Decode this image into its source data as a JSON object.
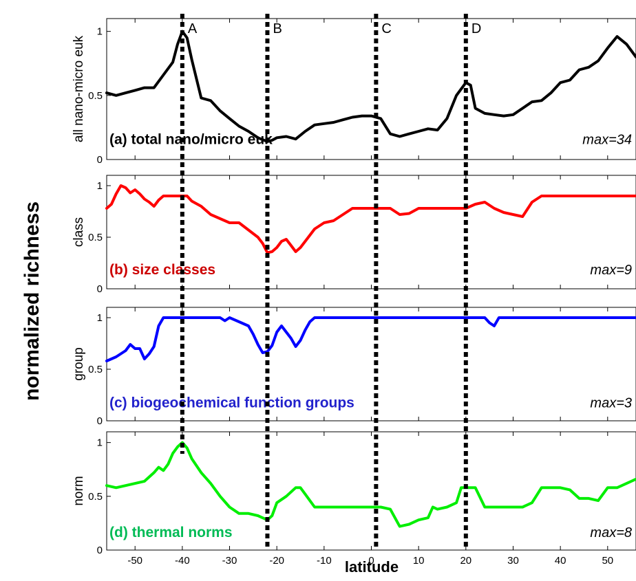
{
  "chart_data": {
    "type": "line",
    "ylabel": "normalized richness",
    "xlabel": "latitude",
    "xlim": [
      -56,
      56
    ],
    "x_ticks": [
      -50,
      -40,
      -30,
      -20,
      -10,
      0,
      10,
      20,
      30,
      40,
      50
    ],
    "markers": [
      {
        "label": "A",
        "x": -40
      },
      {
        "label": "B",
        "x": -22
      },
      {
        "label": "C",
        "x": 1
      },
      {
        "label": "D",
        "x": 20
      }
    ],
    "panels": [
      {
        "ylabel": "all nano-micro euk",
        "label": "(a) total nano/micro euk",
        "max_label": "max=34",
        "color": "#000000",
        "label_color": "#000000",
        "ylim": [
          0,
          1.1
        ],
        "y_ticks": [
          0,
          0.5,
          1
        ],
        "y_tick_labels": [
          "0",
          "0.5",
          "1"
        ],
        "x": [
          -56,
          -54,
          -52,
          -50,
          -48,
          -46,
          -44,
          -42,
          -41,
          -40,
          -39,
          -38,
          -36,
          -34,
          -32,
          -30,
          -28,
          -26,
          -24,
          -22,
          -21,
          -20,
          -18,
          -16,
          -14,
          -12,
          -10,
          -8,
          -6,
          -4,
          -2,
          0,
          2,
          4,
          6,
          8,
          10,
          12,
          14,
          16,
          18,
          20,
          21,
          22,
          24,
          26,
          28,
          30,
          32,
          34,
          36,
          38,
          40,
          42,
          44,
          46,
          48,
          50,
          52,
          54,
          56
        ],
        "values": [
          0.52,
          0.5,
          0.52,
          0.54,
          0.56,
          0.56,
          0.66,
          0.76,
          0.9,
          1.0,
          0.95,
          0.78,
          0.48,
          0.46,
          0.38,
          0.32,
          0.26,
          0.22,
          0.17,
          0.14,
          0.15,
          0.17,
          0.18,
          0.16,
          0.22,
          0.27,
          0.28,
          0.29,
          0.31,
          0.33,
          0.34,
          0.34,
          0.32,
          0.2,
          0.18,
          0.2,
          0.22,
          0.24,
          0.23,
          0.32,
          0.5,
          0.6,
          0.58,
          0.4,
          0.36,
          0.35,
          0.34,
          0.35,
          0.4,
          0.45,
          0.46,
          0.52,
          0.6,
          0.62,
          0.7,
          0.72,
          0.77,
          0.87,
          0.96,
          0.9,
          0.8
        ]
      },
      {
        "ylabel": "class",
        "label": "(b) size classes",
        "max_label": "max=9",
        "color": "#ff0000",
        "label_color": "#cc0000",
        "ylim": [
          0,
          1.1
        ],
        "y_ticks": [
          0,
          0.5,
          1
        ],
        "y_tick_labels": [
          "0",
          "0.5",
          "1"
        ],
        "x": [
          -56,
          -55,
          -54,
          -53,
          -52,
          -51,
          -50,
          -49,
          -48,
          -47,
          -46,
          -45,
          -44,
          -43,
          -42,
          -41,
          -40,
          -39,
          -38,
          -36,
          -34,
          -32,
          -30,
          -28,
          -26,
          -24,
          -23,
          -22,
          -21,
          -20,
          -19,
          -18,
          -17,
          -16,
          -15,
          -14,
          -12,
          -10,
          -8,
          -6,
          -4,
          -2,
          0,
          2,
          4,
          6,
          8,
          10,
          12,
          14,
          16,
          18,
          20,
          22,
          24,
          26,
          28,
          30,
          32,
          34,
          36,
          40,
          45,
          50,
          56
        ],
        "values": [
          0.78,
          0.82,
          0.92,
          1.0,
          0.98,
          0.93,
          0.96,
          0.92,
          0.87,
          0.84,
          0.8,
          0.86,
          0.9,
          0.9,
          0.9,
          0.9,
          0.9,
          0.9,
          0.85,
          0.8,
          0.72,
          0.68,
          0.64,
          0.64,
          0.57,
          0.5,
          0.44,
          0.35,
          0.36,
          0.4,
          0.46,
          0.48,
          0.42,
          0.36,
          0.4,
          0.46,
          0.58,
          0.64,
          0.66,
          0.72,
          0.78,
          0.78,
          0.78,
          0.78,
          0.78,
          0.72,
          0.73,
          0.78,
          0.78,
          0.78,
          0.78,
          0.78,
          0.78,
          0.82,
          0.84,
          0.78,
          0.74,
          0.72,
          0.7,
          0.84,
          0.9,
          0.9,
          0.9,
          0.9,
          0.9
        ]
      },
      {
        "ylabel": "group",
        "label": "(c) biogeochemical function groups",
        "max_label": "max=3",
        "color": "#0000ff",
        "label_color": "#2222cc",
        "ylim": [
          0,
          1.1
        ],
        "y_ticks": [
          0,
          0.5,
          1
        ],
        "y_tick_labels": [
          "0",
          "0.5",
          "1"
        ],
        "x": [
          -56,
          -54,
          -52,
          -51,
          -50,
          -49,
          -48,
          -47,
          -46,
          -45,
          -44,
          -42,
          -40,
          -38,
          -36,
          -34,
          -32,
          -31,
          -30,
          -28,
          -26,
          -25,
          -24,
          -23,
          -22,
          -21,
          -20,
          -19,
          -18,
          -17,
          -16,
          -15,
          -14,
          -13,
          -12,
          -10,
          0,
          10,
          20,
          24,
          25,
          26,
          27,
          30,
          40,
          50,
          56
        ],
        "values": [
          0.58,
          0.62,
          0.68,
          0.74,
          0.7,
          0.7,
          0.6,
          0.65,
          0.72,
          0.92,
          1.0,
          1.0,
          1.0,
          1.0,
          1.0,
          1.0,
          1.0,
          0.97,
          1.0,
          0.96,
          0.92,
          0.84,
          0.74,
          0.66,
          0.67,
          0.73,
          0.86,
          0.92,
          0.86,
          0.8,
          0.72,
          0.78,
          0.88,
          0.96,
          1.0,
          1.0,
          1.0,
          1.0,
          1.0,
          1.0,
          0.95,
          0.92,
          1.0,
          1.0,
          1.0,
          1.0,
          1.0
        ]
      },
      {
        "ylabel": "norm",
        "label": "(d) thermal norms",
        "max_label": "max=8",
        "color": "#00ee00",
        "label_color": "#00bb55",
        "ylim": [
          0,
          1.1
        ],
        "y_ticks": [
          0,
          0.5,
          1
        ],
        "y_tick_labels": [
          "0",
          "0.5",
          "1"
        ],
        "x": [
          -56,
          -54,
          -52,
          -50,
          -48,
          -46,
          -45,
          -44,
          -43,
          -42,
          -41,
          -40,
          -39,
          -38,
          -36,
          -34,
          -32,
          -30,
          -28,
          -26,
          -24,
          -22,
          -21,
          -20,
          -18,
          -16,
          -15,
          -14,
          -12,
          -10,
          -8,
          -6,
          -4,
          -2,
          0,
          2,
          4,
          6,
          8,
          10,
          12,
          13,
          14,
          16,
          18,
          19,
          20,
          21,
          22,
          24,
          26,
          28,
          30,
          32,
          34,
          36,
          38,
          40,
          42,
          44,
          46,
          48,
          50,
          52,
          54,
          56
        ],
        "values": [
          0.6,
          0.58,
          0.6,
          0.62,
          0.64,
          0.72,
          0.77,
          0.74,
          0.8,
          0.9,
          0.96,
          1.0,
          0.95,
          0.85,
          0.72,
          0.62,
          0.5,
          0.4,
          0.34,
          0.34,
          0.32,
          0.28,
          0.32,
          0.44,
          0.5,
          0.58,
          0.58,
          0.52,
          0.4,
          0.4,
          0.4,
          0.4,
          0.4,
          0.4,
          0.4,
          0.4,
          0.38,
          0.22,
          0.24,
          0.28,
          0.3,
          0.4,
          0.38,
          0.4,
          0.44,
          0.58,
          0.58,
          0.58,
          0.58,
          0.4,
          0.4,
          0.4,
          0.4,
          0.4,
          0.44,
          0.58,
          0.58,
          0.58,
          0.56,
          0.48,
          0.48,
          0.46,
          0.58,
          0.58,
          0.62,
          0.66
        ]
      }
    ]
  }
}
